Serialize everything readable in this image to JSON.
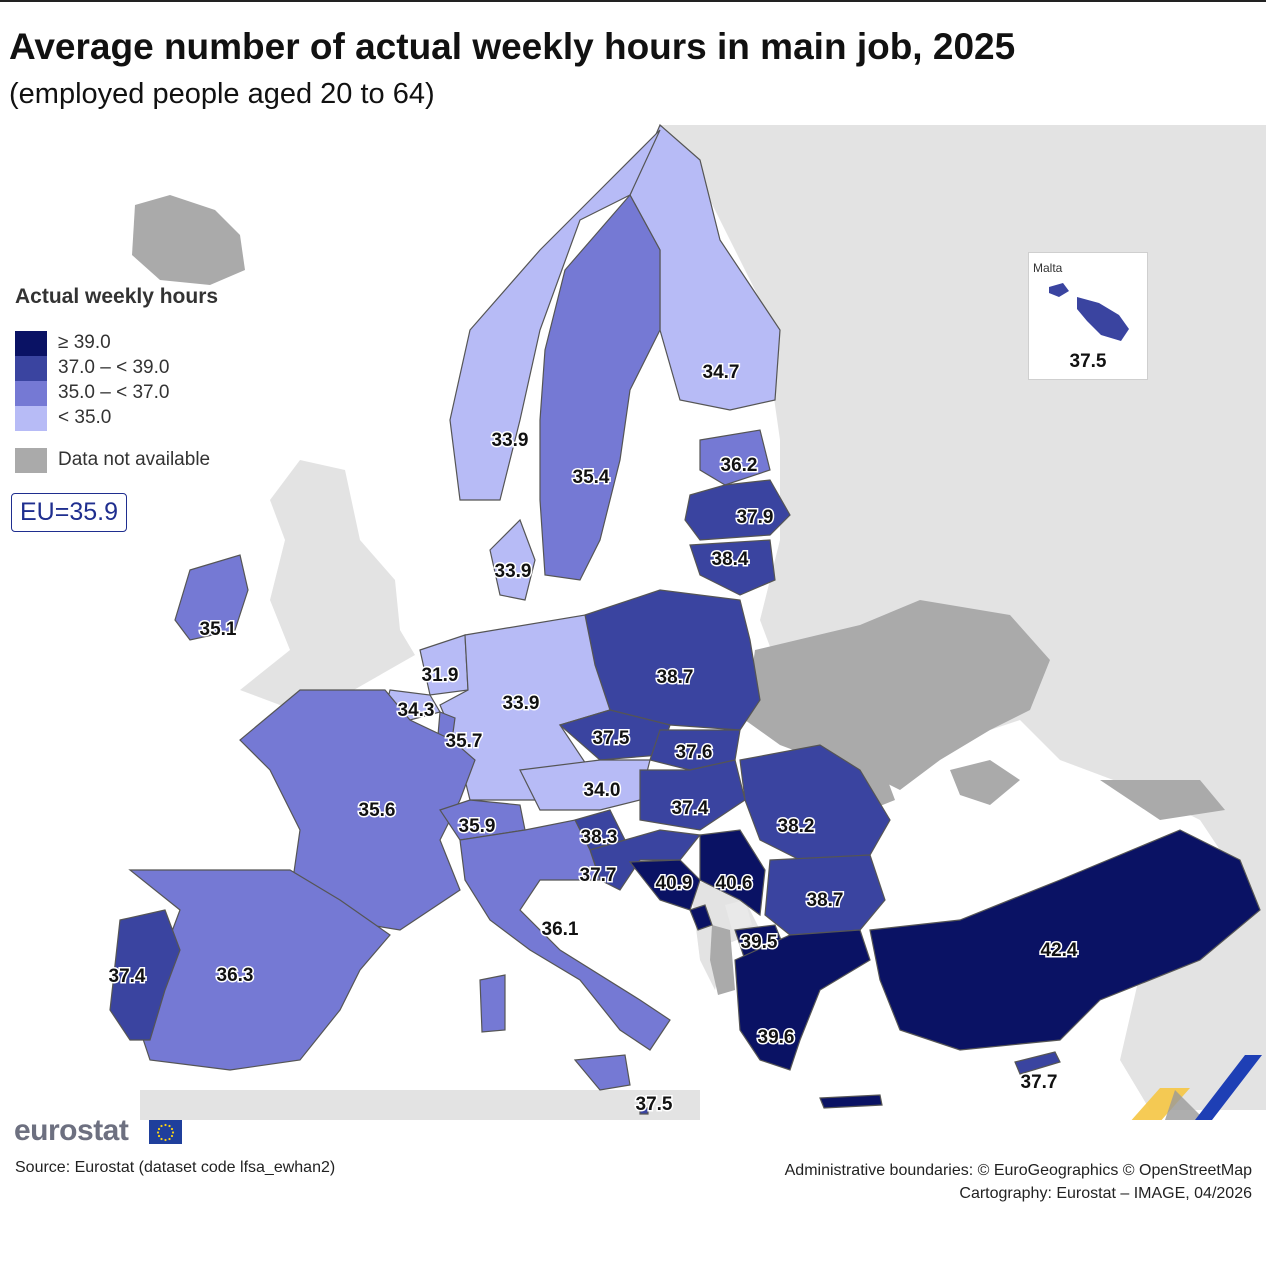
{
  "title": "Average number of actual weekly hours in main job, 2025",
  "subtitle": "(employed people aged 20 to 64)",
  "legend": {
    "title": "Actual weekly hours",
    "classes": [
      {
        "label": "≥ 39.0",
        "color": "#0a1264"
      },
      {
        "label": "37.0 – < 39.0",
        "color": "#3a44a0"
      },
      {
        "label": "35.0 – < 37.0",
        "color": "#7579d4"
      },
      {
        "label": "< 35.0",
        "color": "#b7bbf6"
      },
      {
        "label": "Data not available",
        "color": "#aaaaaa"
      }
    ]
  },
  "eu_average": "EU=35.9",
  "regions": [
    {
      "label": "34.7",
      "class": 3
    },
    {
      "label": "35.4",
      "class": 2
    },
    {
      "label": "33.9",
      "class": 3
    },
    {
      "label": "36.2",
      "class": 2
    },
    {
      "label": "37.9",
      "class": 1
    },
    {
      "label": "38.4",
      "class": 1
    },
    {
      "label": "33.9",
      "class": 3
    },
    {
      "label": "35.1",
      "class": 2
    },
    {
      "label": "38.7",
      "class": 1
    },
    {
      "label": "31.9",
      "class": 3
    },
    {
      "label": "33.9",
      "class": 3
    },
    {
      "label": "34.3",
      "class": 3
    },
    {
      "label": "35.7",
      "class": 2
    },
    {
      "label": "37.5",
      "class": 1
    },
    {
      "label": "37.6",
      "class": 1
    },
    {
      "label": "34.0",
      "class": 3
    },
    {
      "label": "35.6",
      "class": 2
    },
    {
      "label": "35.9",
      "class": 2
    },
    {
      "label": "37.4",
      "class": 1
    },
    {
      "label": "38.2",
      "class": 1
    },
    {
      "label": "38.3",
      "class": 1
    },
    {
      "label": "37.7",
      "class": 1
    },
    {
      "label": "40.9",
      "class": 0
    },
    {
      "label": "40.6",
      "class": 0
    },
    {
      "label": "38.7",
      "class": 1
    },
    {
      "label": "39.5",
      "class": 0
    },
    {
      "label": "36.1",
      "class": 2
    },
    {
      "label": "37.4",
      "class": 1
    },
    {
      "label": "36.3",
      "class": 2
    },
    {
      "label": "42.4",
      "class": 0
    },
    {
      "label": "39.6",
      "class": 0
    },
    {
      "label": "37.7",
      "class": 1
    },
    {
      "label": "37.5",
      "class": 1
    }
  ],
  "inset": {
    "name": "Malta",
    "value": "37.5",
    "class": 1
  },
  "brand": "eurostat",
  "source": "Source: Eurostat (dataset code lfsa_ewhan2)",
  "credits": {
    "line1": "Administrative boundaries: © EuroGeographics © OpenStreetMap",
    "line2": "Cartography: Eurostat – IMAGE, 04/2026"
  },
  "colors": {
    "sea": "#ffffff",
    "non_eu_land": "#e3e3e3",
    "no_data": "#aaaaaa",
    "border": "#555555",
    "accent": "#1f2e8f"
  }
}
